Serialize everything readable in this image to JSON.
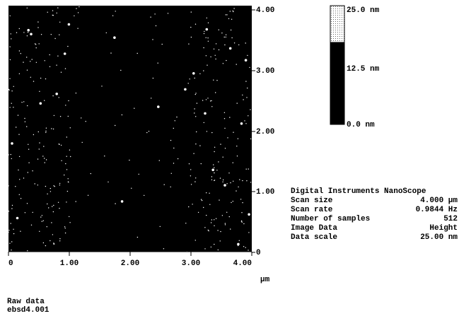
{
  "image": {
    "y_tick_labels": [
      "4.00",
      "3.00",
      "2.00",
      "1.00",
      "0"
    ],
    "x_tick_labels": [
      "0",
      "1.00",
      "2.00",
      "3.00",
      "4.00"
    ],
    "x_unit": "µm"
  },
  "color_bar": {
    "labels": [
      "25.0 nm",
      "12.5 nm",
      "0.0 nm"
    ]
  },
  "info": {
    "title": "Digital Instruments NanoScope",
    "rows": [
      [
        "Scan size",
        "4.000 µm"
      ],
      [
        "Scan rate",
        "0.9844 Hz"
      ],
      [
        "Number of samples",
        "512"
      ],
      [
        "Image Data",
        "Height"
      ],
      [
        "Data scale",
        "25.00 nm"
      ]
    ]
  },
  "footer": [
    "Raw data",
    "ebsd4.001"
  ]
}
